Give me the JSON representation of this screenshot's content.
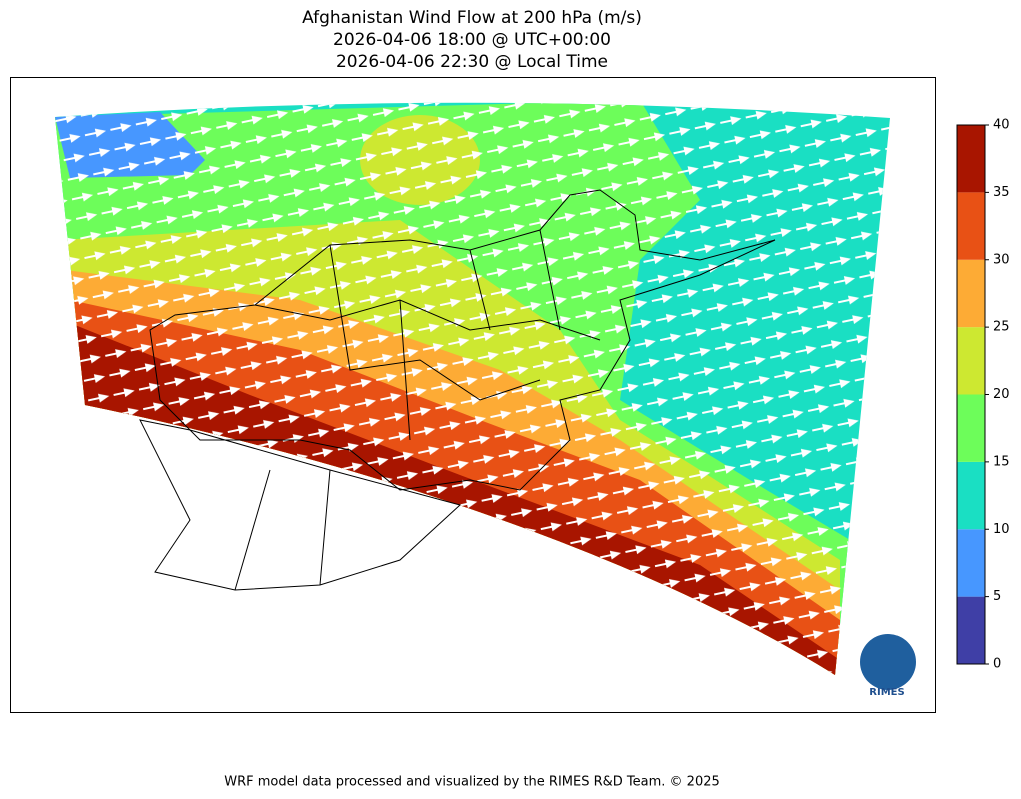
{
  "title": [
    "Afghanistan Wind Flow at 200 hPa (m/s)",
    "2026-04-06 18:00 @ UTC+00:00",
    "2026-04-06 22:30 @ Local Time"
  ],
  "colorbar": {
    "ticks": [
      0,
      5,
      10,
      15,
      20,
      25,
      30,
      35,
      40
    ],
    "colors": [
      "#3f3fa6",
      "#4797ff",
      "#1adfc3",
      "#6dfd5a",
      "#cde831",
      "#fdab35",
      "#e85115",
      "#a81500"
    ]
  },
  "logo": "RIMES",
  "footer": "WRF model data processed and visualized by the RIMES R&D Team. © 2025"
}
